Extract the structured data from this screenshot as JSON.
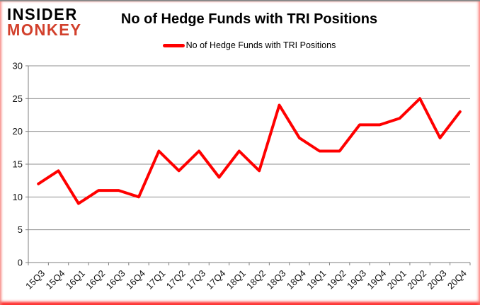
{
  "logo": {
    "line1": "INSIDER",
    "line2": "MONKEY",
    "line1_color": "#000000",
    "line2_color": "#d2402c"
  },
  "header": {
    "title": "No of Hedge Funds with TRI Positions"
  },
  "legend": {
    "label": "No of Hedge Funds with TRI Positions",
    "marker_color": "#ff0000"
  },
  "chart_data": {
    "type": "line",
    "title": "No of Hedge Funds with TRI Positions",
    "categories": [
      "15Q3",
      "15Q4",
      "16Q1",
      "16Q2",
      "16Q3",
      "16Q4",
      "17Q1",
      "17Q2",
      "17Q3",
      "17Q4",
      "18Q1",
      "18Q2",
      "18Q3",
      "18Q4",
      "19Q1",
      "19Q2",
      "19Q3",
      "19Q4",
      "20Q1",
      "20Q2",
      "20Q3",
      "20Q4"
    ],
    "series": [
      {
        "name": "No of Hedge Funds with TRI Positions",
        "color": "#ff0000",
        "values": [
          12,
          14,
          9,
          11,
          11,
          10,
          17,
          14,
          17,
          13,
          17,
          14,
          24,
          19,
          17,
          17,
          21,
          21,
          22,
          25,
          19,
          23
        ]
      }
    ],
    "xlabel": "",
    "ylabel": "",
    "ylim": [
      0,
      30
    ],
    "yticks": [
      0,
      5,
      10,
      15,
      20,
      25,
      30
    ],
    "grid": true,
    "legend_position": "top-center",
    "line_width": 4
  },
  "colors": {
    "line": "#ff0000",
    "gridline": "#8f8f8f",
    "axis": "#7f7f7f",
    "tick_label": "#111111",
    "border_glow": "#ff0000"
  }
}
